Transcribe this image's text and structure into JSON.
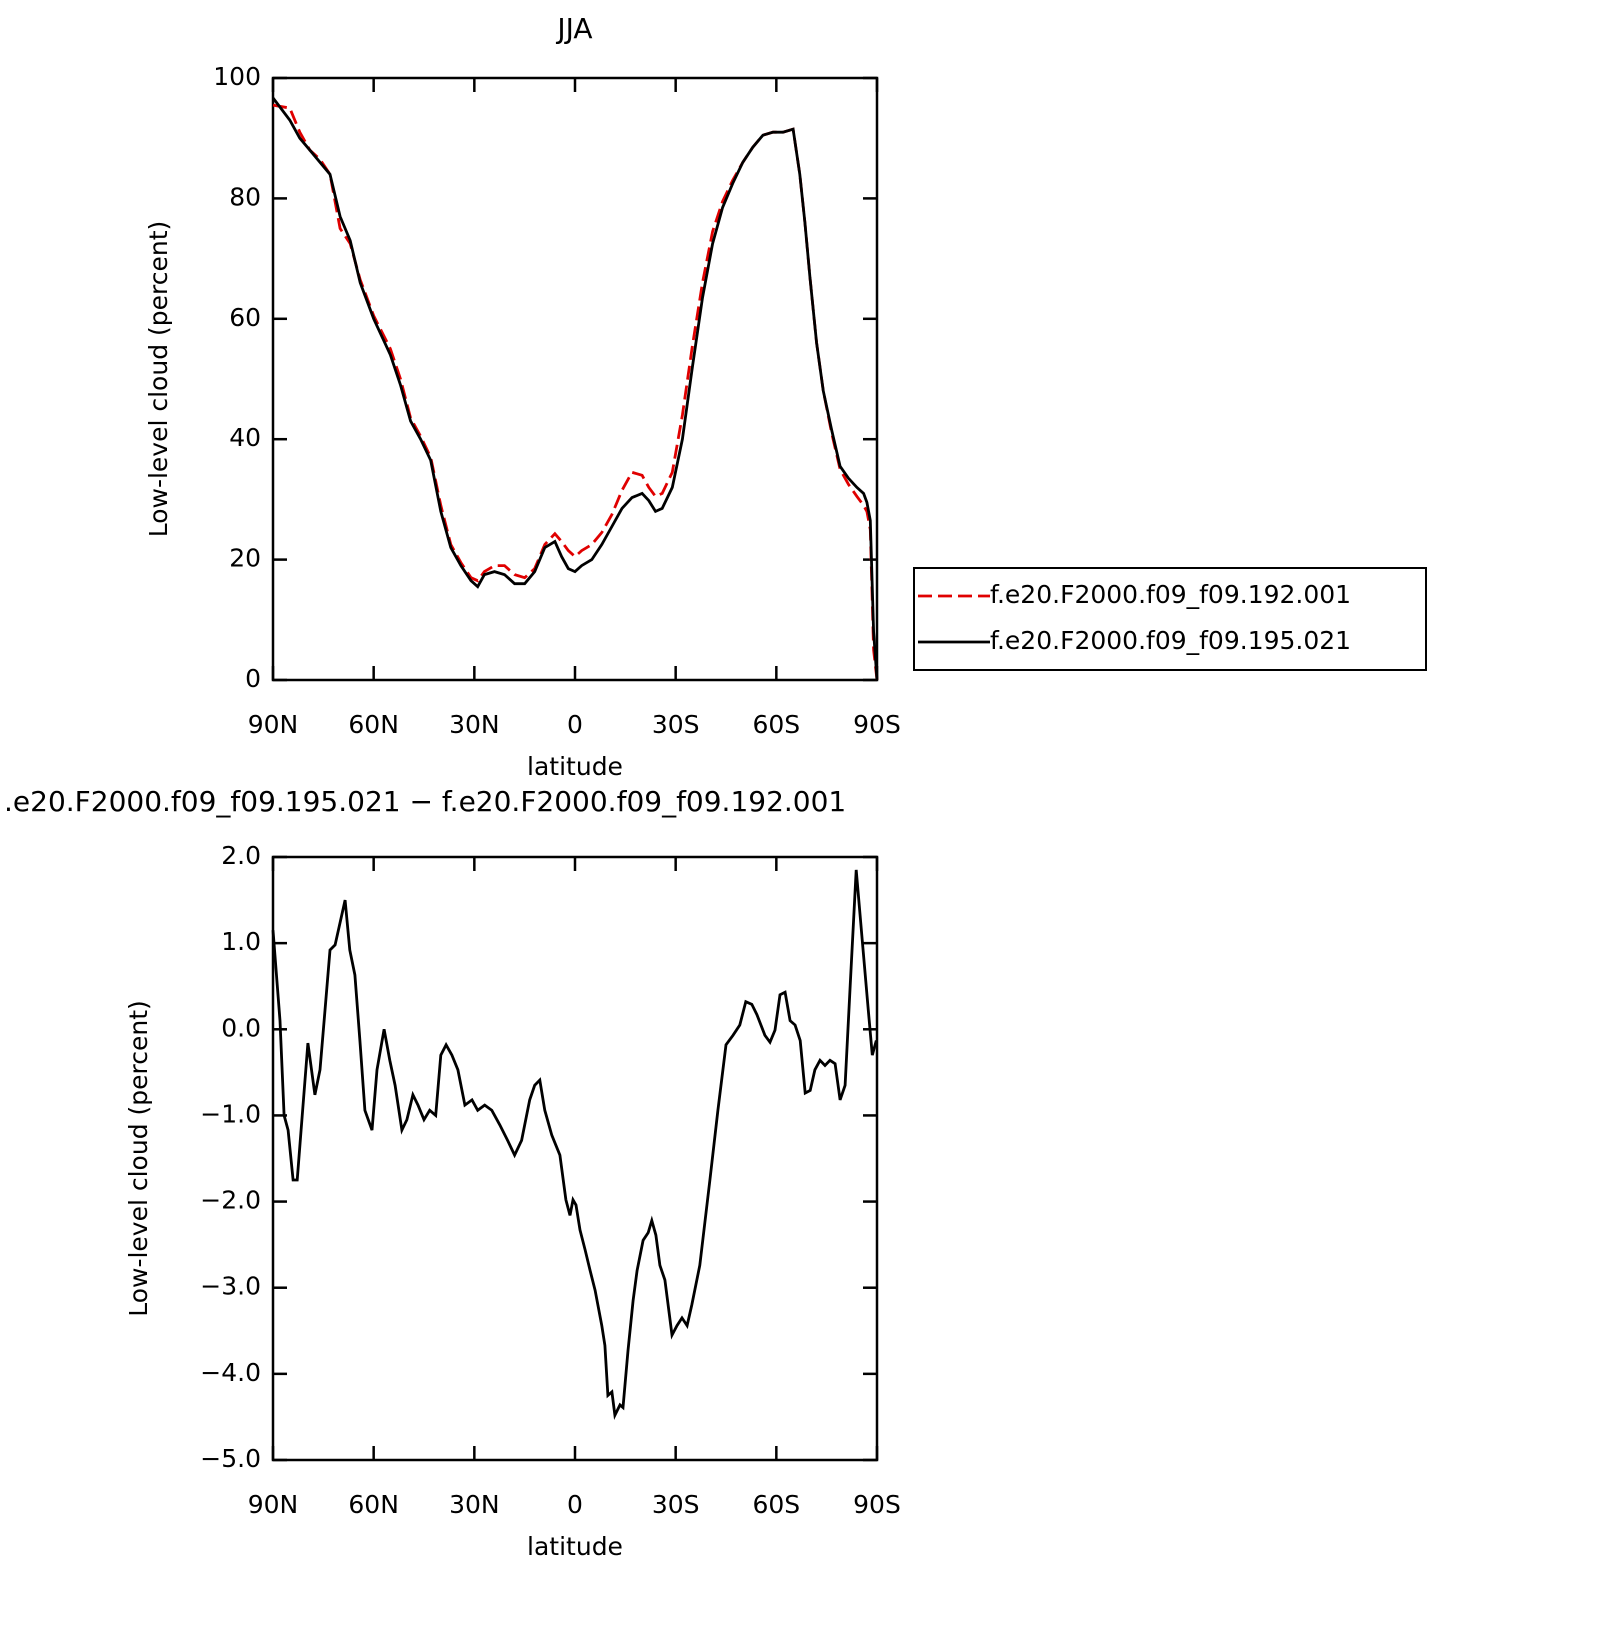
{
  "chart_data": [
    {
      "type": "line",
      "title": "JJA",
      "xlabel": "latitude",
      "ylabel": "Low-level cloud (percent)",
      "xlim": [
        90,
        -90
      ],
      "xticks": [
        {
          "value": 90,
          "label": "90N"
        },
        {
          "value": 60,
          "label": "60N"
        },
        {
          "value": 30,
          "label": "30N"
        },
        0,
        {
          "value": -30,
          "label": "30S"
        },
        {
          "value": -60,
          "label": "60S"
        },
        {
          "value": -90,
          "label": "90S"
        }
      ],
      "ylim": [
        0,
        100
      ],
      "yticks": [
        0,
        20,
        40,
        60,
        80,
        100
      ],
      "legend": "right",
      "x": [
        90,
        85,
        82,
        79,
        76,
        73,
        70,
        67,
        64,
        60,
        55,
        52,
        49,
        46,
        43,
        40,
        37,
        34,
        31,
        29,
        27,
        24,
        21,
        18,
        15,
        12,
        9,
        6,
        4,
        2,
        0,
        -2,
        -5,
        -8,
        -11,
        -14,
        -17,
        -20,
        -22,
        -24,
        -26,
        -29,
        -32,
        -35,
        -38,
        -41,
        -44,
        -47,
        -50,
        -53,
        -56,
        -59,
        -62,
        -65,
        -67,
        -68.5,
        -70,
        -72,
        -74,
        -76.5,
        -79,
        -81.5,
        -84,
        -86,
        -87,
        -88,
        -89,
        -90
      ],
      "series": [
        {
          "name": "f.e20.F2000.f09_f09.192.001",
          "color": "#e00000",
          "linestyle": "dashed",
          "values": [
            95.5,
            95,
            91,
            88,
            86.5,
            84,
            75,
            72.5,
            66.5,
            60.5,
            55,
            50,
            43.5,
            40.5,
            37,
            29,
            22.5,
            19.5,
            17,
            16.5,
            18,
            19,
            19,
            17.5,
            17,
            18.5,
            22.5,
            24.3,
            23,
            21.5,
            20.5,
            21.5,
            22.5,
            24.5,
            27.5,
            31.5,
            34.5,
            34,
            32,
            30.5,
            31,
            34.5,
            44,
            55.5,
            66,
            74.5,
            79.5,
            83,
            86,
            88.5,
            90.5,
            91,
            91,
            91.5,
            84,
            76,
            67,
            56,
            48,
            41,
            35,
            32.5,
            30.5,
            29,
            28,
            25,
            5,
            0
          ]
        },
        {
          "name": "f.e20.F2000.f09_f09.195.021",
          "color": "#000000",
          "linestyle": "solid",
          "values": [
            96.7,
            93,
            90,
            88,
            86,
            84,
            77,
            73,
            66,
            60,
            54,
            49,
            43,
            40,
            36.5,
            28,
            22,
            19,
            16.5,
            15.5,
            17.5,
            18,
            17.5,
            16,
            16,
            18,
            22,
            23,
            20.5,
            18.5,
            18,
            19,
            20,
            22.5,
            25.5,
            28.5,
            30.3,
            31,
            29.8,
            28,
            28.5,
            32,
            40,
            52,
            63.5,
            72.5,
            78.5,
            82.5,
            86,
            88.5,
            90.5,
            91,
            91,
            91.5,
            84,
            76,
            67,
            56,
            48,
            41.5,
            35.5,
            33.5,
            32,
            31,
            29.5,
            26.5,
            8,
            0
          ]
        }
      ]
    },
    {
      "type": "line",
      "title": ".e20.F2000.f09_f09.195.021 − f.e20.F2000.f09_f09.192.001",
      "xlabel": "latitude",
      "ylabel": "Low-level cloud (percent)",
      "xlim": [
        90,
        -90
      ],
      "xticks": [
        {
          "value": 90,
          "label": "90N"
        },
        {
          "value": 60,
          "label": "60N"
        },
        {
          "value": 30,
          "label": "30N"
        },
        0,
        {
          "value": -30,
          "label": "30S"
        },
        {
          "value": -60,
          "label": "60S"
        },
        {
          "value": -90,
          "label": "90S"
        }
      ],
      "ylim": [
        -5,
        2
      ],
      "yticks": [
        {
          "value": 2,
          "label": "2.0"
        },
        {
          "value": 1,
          "label": "1.0"
        },
        {
          "value": 0,
          "label": "0.0"
        },
        {
          "value": -1,
          "label": "−1.0"
        },
        {
          "value": -2,
          "label": "−2.0"
        },
        {
          "value": -3,
          "label": "−3.0"
        },
        {
          "value": -4,
          "label": "−4.0"
        },
        {
          "value": -5,
          "label": "−5.0"
        }
      ],
      "x": [
        90,
        87.9,
        86.7,
        85.5,
        84.0,
        82.8,
        81.4,
        79.6,
        77.5,
        76.0,
        74.5,
        73.0,
        71.5,
        68.5,
        67.1,
        65.6,
        64.1,
        62.6,
        60.5,
        59.0,
        56.9,
        55.2,
        53.6,
        51.6,
        50.1,
        48.3,
        46.8,
        45.0,
        43.3,
        41.5,
        40.0,
        38.4,
        36.7,
        34.9,
        32.8,
        30.7,
        29.0,
        26.9,
        24.8,
        22.4,
        20.1,
        18.0,
        15.9,
        13.5,
        12.0,
        10.5,
        9.0,
        6.9,
        4.5,
        2.7,
        1.5,
        0.6,
        -0.3,
        -1.5,
        -3.0,
        -4.5,
        -6.0,
        -8.0,
        -8.9,
        -9.8,
        -11.0,
        -11.9,
        -13.4,
        -14.3,
        -15.8,
        -17.3,
        -18.5,
        -20.3,
        -21.8,
        -22.9,
        -24.1,
        -25.3,
        -26.8,
        -28.9,
        -30.4,
        -31.9,
        -33.4,
        -34.8,
        -37.2,
        -40.2,
        -42.6,
        -45.0,
        -47.1,
        -49.1,
        -50.9,
        -52.7,
        -54.2,
        -56.6,
        -58.1,
        -59.6,
        -61.1,
        -62.6,
        -64.1,
        -65.6,
        -67.1,
        -68.6,
        -70.1,
        -71.5,
        -73.0,
        -74.5,
        -76.0,
        -77.5,
        -79.0,
        -80.5,
        -82.0,
        -83.8,
        -85.6,
        -87.4,
        -88.6,
        -89.8
      ],
      "series": [
        {
          "color": "#000000",
          "linestyle": "solid",
          "values": [
            1.15,
            0.1,
            -1.0,
            -1.17,
            -1.75,
            -1.75,
            -1.05,
            -0.16,
            -0.76,
            -0.47,
            0.22,
            0.92,
            0.98,
            1.5,
            0.92,
            0.63,
            -0.13,
            -0.94,
            -1.17,
            -0.47,
            0,
            -0.36,
            -0.65,
            -1.17,
            -1.05,
            -0.76,
            -0.88,
            -1.05,
            -0.94,
            -1.0,
            -0.3,
            -0.18,
            -0.3,
            -0.47,
            -0.88,
            -0.82,
            -0.94,
            -0.88,
            -0.94,
            -1.11,
            -1.29,
            -1.46,
            -1.29,
            -0.82,
            -0.65,
            -0.59,
            -0.94,
            -1.23,
            -1.46,
            -1.98,
            -2.16,
            -1.98,
            -2.04,
            -2.33,
            -2.56,
            -2.8,
            -3.03,
            -3.44,
            -3.67,
            -4.25,
            -4.21,
            -4.48,
            -4.36,
            -4.39,
            -3.73,
            -3.15,
            -2.8,
            -2.45,
            -2.36,
            -2.22,
            -2.39,
            -2.74,
            -2.91,
            -3.55,
            -3.44,
            -3.35,
            -3.44,
            -3.2,
            -2.74,
            -1.75,
            -0.94,
            -0.18,
            -0.07,
            0.05,
            0.32,
            0.29,
            0.17,
            -0.07,
            -0.15,
            -0.01,
            0.4,
            0.43,
            0.1,
            0.05,
            -0.13,
            -0.74,
            -0.71,
            -0.47,
            -0.36,
            -0.42,
            -0.36,
            -0.4,
            -0.82,
            -0.65,
            0.51,
            1.85,
            1.04,
            0.22,
            -0.3,
            -0.13
          ]
        }
      ]
    }
  ]
}
